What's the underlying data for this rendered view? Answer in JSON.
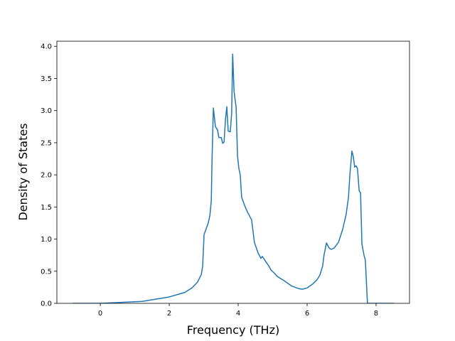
{
  "chart_data": {
    "type": "line",
    "xlabel": "Frequency (THz)",
    "ylabel": "Density of States",
    "x": [
      -0.8,
      0,
      1.22,
      2.0,
      2.45,
      2.66,
      2.82,
      2.93,
      2.97,
      3.01,
      3.13,
      3.18,
      3.22,
      3.24,
      3.28,
      3.34,
      3.4,
      3.44,
      3.51,
      3.55,
      3.59,
      3.63,
      3.67,
      3.71,
      3.77,
      3.81,
      3.84,
      3.88,
      3.94,
      3.98,
      4.02,
      4.06,
      4.1,
      4.19,
      4.27,
      4.39,
      4.47,
      4.58,
      4.66,
      4.7,
      4.8,
      4.89,
      4.95,
      5.05,
      5.13,
      5.34,
      5.55,
      5.75,
      5.86,
      6.0,
      6.16,
      6.29,
      6.37,
      6.45,
      6.49,
      6.56,
      6.64,
      6.7,
      6.78,
      6.91,
      7.03,
      7.13,
      7.2,
      7.24,
      7.3,
      7.34,
      7.38,
      7.42,
      7.46,
      7.51,
      7.55,
      7.59,
      7.65,
      7.69,
      7.75,
      8.52
    ],
    "series": [
      {
        "color": "#1f77b4",
        "values": [
          0,
          0,
          0.03,
          0.1,
          0.17,
          0.24,
          0.33,
          0.45,
          0.58,
          1.07,
          1.25,
          1.37,
          1.6,
          2.2,
          3.04,
          2.75,
          2.7,
          2.58,
          2.58,
          2.49,
          2.51,
          2.85,
          3.06,
          2.68,
          2.67,
          2.95,
          3.88,
          3.3,
          3.05,
          2.3,
          2.1,
          2.0,
          1.65,
          1.52,
          1.42,
          1.3,
          0.95,
          0.78,
          0.7,
          0.73,
          0.65,
          0.58,
          0.52,
          0.47,
          0.42,
          0.35,
          0.27,
          0.23,
          0.22,
          0.24,
          0.3,
          0.37,
          0.44,
          0.58,
          0.75,
          0.94,
          0.86,
          0.84,
          0.86,
          0.95,
          1.15,
          1.38,
          1.65,
          2.0,
          2.37,
          2.28,
          2.12,
          2.14,
          2.1,
          1.75,
          1.72,
          0.92,
          0.75,
          0.67,
          0.0,
          0
        ]
      }
    ],
    "xlim": [
      -1.26,
      8.97
    ],
    "ylim": [
      0,
      4.08
    ],
    "xticks": [
      0,
      2,
      4,
      6,
      8
    ],
    "yticks": [
      {
        "value": 0,
        "label": "0.0"
      },
      0.5,
      {
        "value": 1,
        "label": "1.0"
      },
      1.5,
      {
        "value": 2,
        "label": "2.0"
      },
      2.5,
      {
        "value": 3,
        "label": "3.0"
      },
      3.5,
      {
        "value": 4,
        "label": "4.0"
      }
    ],
    "grid": false
  }
}
